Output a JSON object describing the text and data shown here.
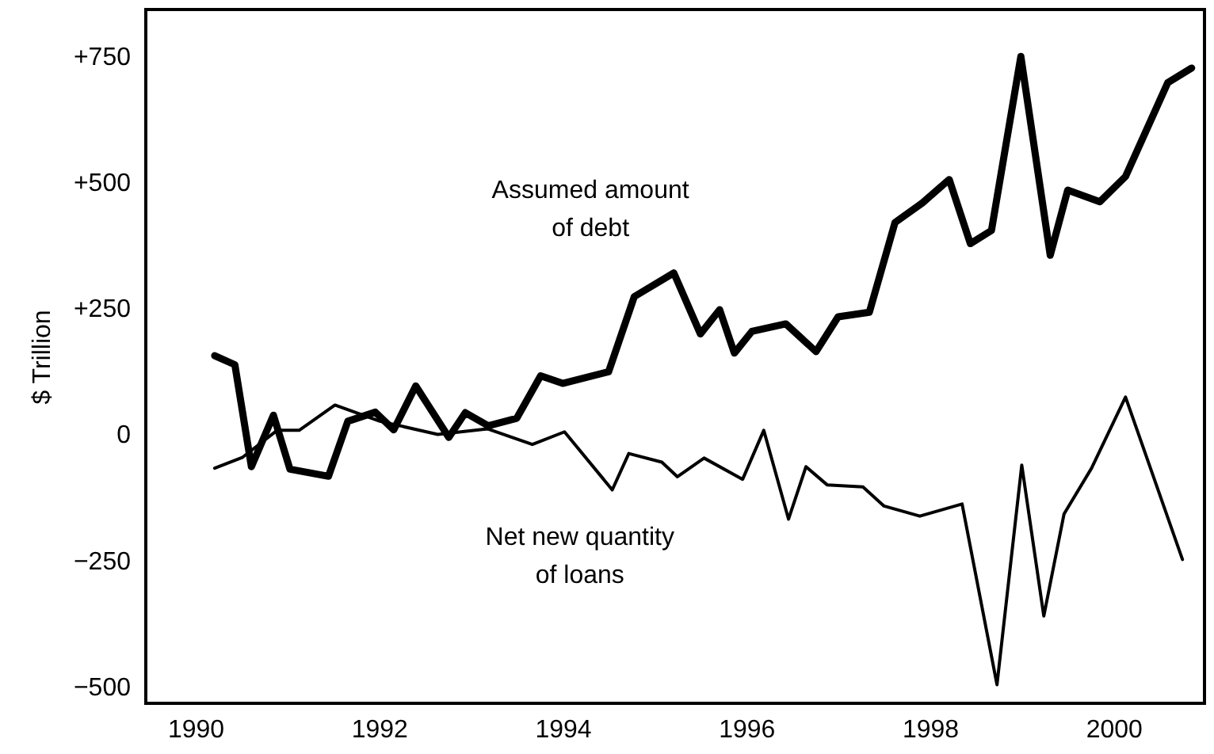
{
  "chart_data": {
    "type": "line",
    "ylabel": "$ Trillion",
    "xlim": [
      1989.46,
      2000.99
    ],
    "ylim": [
      -533,
      842
    ],
    "xticks": [
      1990,
      1992,
      1994,
      1996,
      1998,
      2000
    ],
    "yticks": [
      {
        "value": 750,
        "label": "+750"
      },
      {
        "value": 500,
        "label": "+500"
      },
      {
        "value": 250,
        "label": "+250"
      },
      0,
      {
        "value": -250,
        "label": "−250"
      },
      {
        "value": -500,
        "label": "−500"
      }
    ],
    "legend": false,
    "marker": "none",
    "line_style": "solid",
    "series": [
      {
        "name": "Assumed amount\nof debt",
        "color": "#000000",
        "x": [
          1990.21,
          1990.43,
          1990.61,
          1990.85,
          1991.03,
          1991.45,
          1991.66,
          1991.96,
          1992.16,
          1992.4,
          1992.76,
          1992.94,
          1993.19,
          1993.5,
          1993.76,
          1994.0,
          1994.5,
          1994.78,
          1995.21,
          1995.5,
          1995.71,
          1995.87,
          1996.06,
          1996.43,
          1996.76,
          1997.0,
          1997.34,
          1997.62,
          1997.92,
          1998.21,
          1998.44,
          1998.67,
          1998.99,
          1999.31,
          1999.5,
          1999.85,
          2000.13,
          2000.59,
          2000.85
        ],
        "values": [
          156,
          138,
          -64,
          38,
          -69,
          -83,
          26,
          44,
          9,
          96,
          -6,
          43,
          17,
          32,
          116,
          101,
          124,
          273,
          320,
          199,
          247,
          161,
          204,
          219,
          164,
          233,
          242,
          420,
          459,
          505,
          378,
          404,
          749,
          355,
          484,
          461,
          511,
          697,
          726
        ]
      },
      {
        "name": "Net new quantity\nof loans",
        "color": "#000000",
        "x": [
          1990.21,
          1990.51,
          1990.89,
          1991.13,
          1991.52,
          1992.01,
          1992.64,
          1993.18,
          1993.67,
          1994.02,
          1994.54,
          1994.72,
          1995.08,
          1995.25,
          1995.54,
          1995.96,
          1996.19,
          1996.46,
          1996.65,
          1996.88,
          1997.27,
          1997.5,
          1997.89,
          1998.35,
          1998.73,
          1999.0,
          1999.24,
          1999.46,
          1999.76,
          2000.13,
          2000.75
        ],
        "values": [
          -67,
          -46,
          8,
          8,
          58,
          26,
          0,
          11,
          -20,
          5,
          -110,
          -38,
          -55,
          -84,
          -47,
          -89,
          8,
          -168,
          -64,
          -100,
          -104,
          -142,
          -162,
          -138,
          -496,
          -61,
          -360,
          -158,
          -67,
          74,
          -248
        ]
      }
    ]
  }
}
